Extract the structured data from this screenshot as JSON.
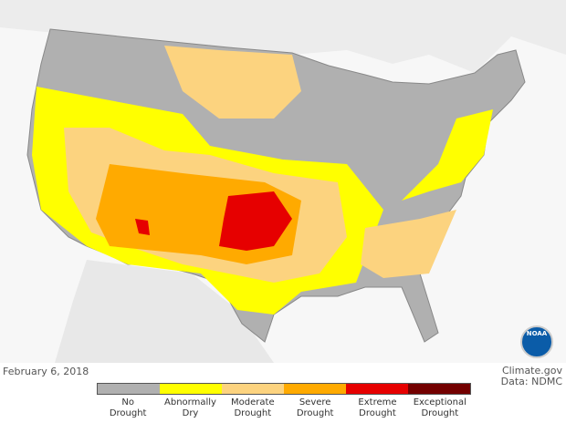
{
  "date": "February 6, 2018",
  "credit": {
    "source": "Climate.gov",
    "data": "Data: NDMC"
  },
  "logo_text": "NOAA",
  "legend": [
    {
      "label": "No\nDrought",
      "color": "#b0b0b0"
    },
    {
      "label": "Abnormally\nDry",
      "color": "#ffff00"
    },
    {
      "label": "Moderate\nDrought",
      "color": "#fcd37f"
    },
    {
      "label": "Severe\nDrought",
      "color": "#ffaa00"
    },
    {
      "label": "Extreme\nDrought",
      "color": "#e60000"
    },
    {
      "label": "Exceptional\nDrought",
      "color": "#730000"
    }
  ]
}
